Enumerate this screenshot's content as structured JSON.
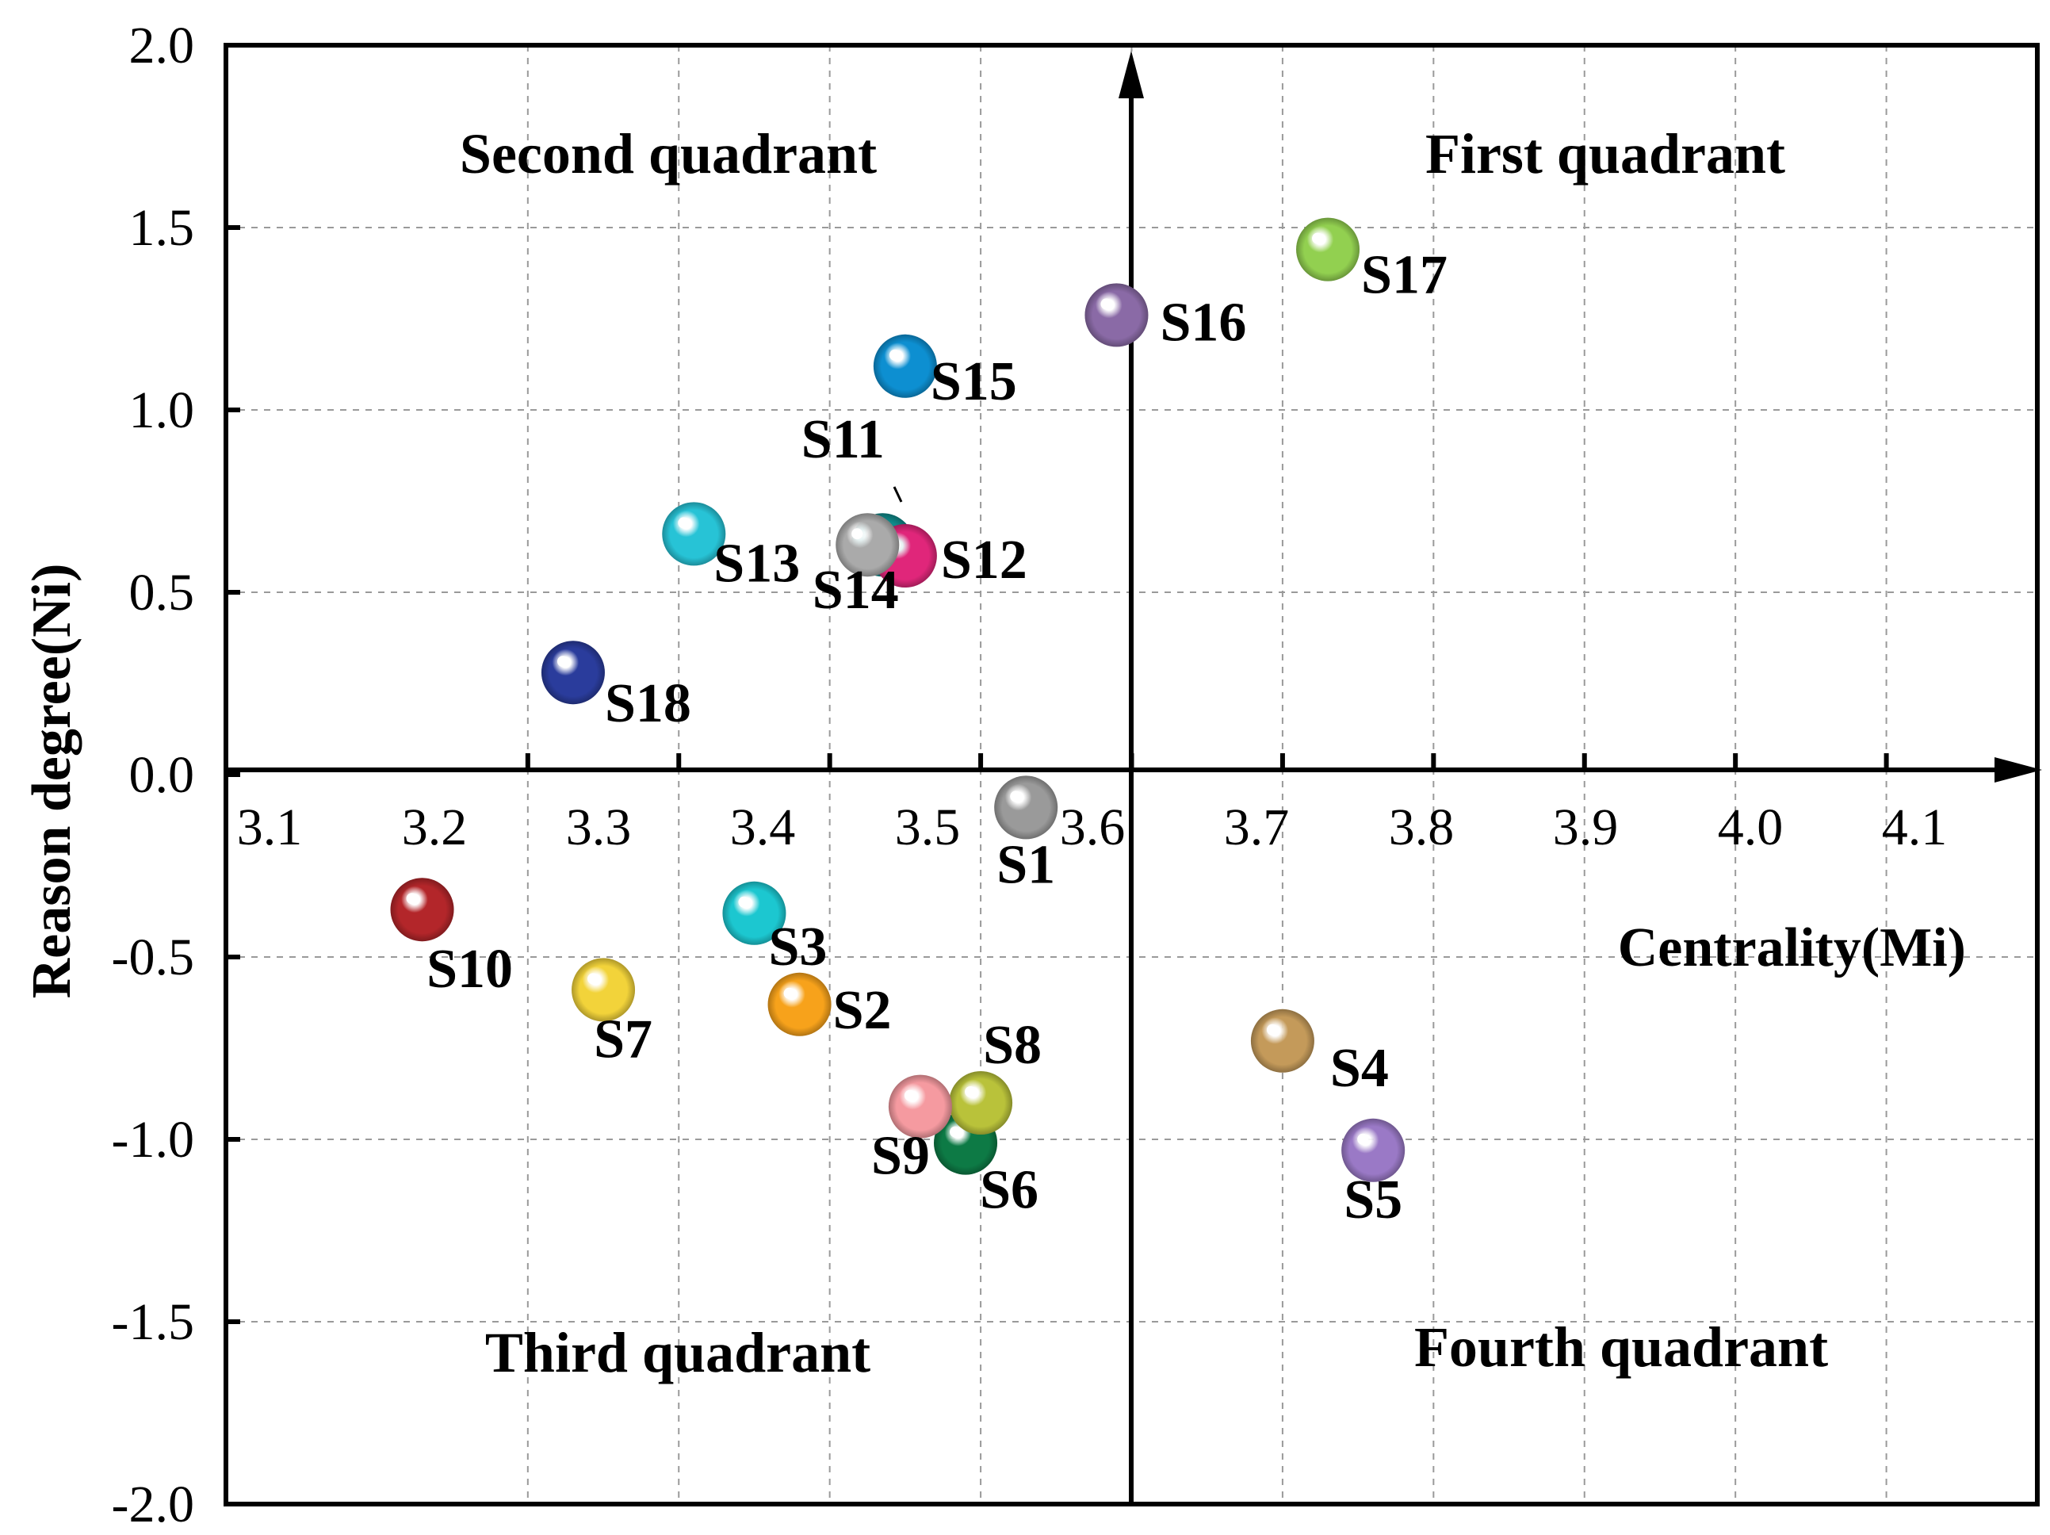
{
  "chart_data": {
    "type": "scatter",
    "xlabel": "Centrality(Mi)",
    "ylabel": "Reason degree(Ni)",
    "xlim": [
      2.95,
      4.15
    ],
    "ylim": [
      -2.0,
      2.0
    ],
    "x_ticks": [
      "3.1",
      "3.2",
      "3.3",
      "3.4",
      "3.5",
      "3.6",
      "3.7",
      "3.8",
      "3.9",
      "4.0",
      "4.1"
    ],
    "y_ticks": [
      "2.0",
      "1.5",
      "1.0",
      "0.5",
      "0.0",
      "-0.5",
      "-1.0",
      "-1.5",
      "-2.0"
    ],
    "origin": {
      "x": 3.5,
      "y": 0.0
    },
    "quadrants": {
      "first": "First quadrant",
      "second": "Second quadrant",
      "third": "Third quadrant",
      "fourth": "Fourth quadrant"
    },
    "grid": true,
    "points": [
      {
        "label": "S1",
        "x": 3.48,
        "y": -0.09,
        "color": "#9a9a9a"
      },
      {
        "label": "S2",
        "x": 3.33,
        "y": -0.63,
        "color": "#f7a21b"
      },
      {
        "label": "S3",
        "x": 3.3,
        "y": -0.38,
        "color": "#1cc7d0"
      },
      {
        "label": "S4",
        "x": 3.65,
        "y": -0.73,
        "color": "#c49a5a"
      },
      {
        "label": "S5",
        "x": 3.71,
        "y": -1.03,
        "color": "#9a79c6"
      },
      {
        "label": "S6",
        "x": 3.44,
        "y": -1.01,
        "color": "#0d7a45"
      },
      {
        "label": "S7",
        "x": 3.2,
        "y": -0.59,
        "color": "#f2d33a"
      },
      {
        "label": "S8",
        "x": 3.45,
        "y": -0.9,
        "color": "#b9c23a"
      },
      {
        "label": "S9",
        "x": 3.41,
        "y": -0.91,
        "color": "#f59aa0"
      },
      {
        "label": "S10",
        "x": 3.08,
        "y": -0.37,
        "color": "#b3262a"
      },
      {
        "label": "S11",
        "x": 3.385,
        "y": 0.63,
        "color": "#0f8a8a"
      },
      {
        "label": "S12",
        "x": 3.4,
        "y": 0.6,
        "color": "#e0267a"
      },
      {
        "label": "S13",
        "x": 3.26,
        "y": 0.66,
        "color": "#27c3d6"
      },
      {
        "label": "S14",
        "x": 3.375,
        "y": 0.63,
        "color": "#aaaaaa"
      },
      {
        "label": "S15",
        "x": 3.4,
        "y": 1.12,
        "color": "#0d8fd1"
      },
      {
        "label": "S16",
        "x": 3.54,
        "y": 1.26,
        "color": "#8a6aa6"
      },
      {
        "label": "S17",
        "x": 3.68,
        "y": 1.44,
        "color": "#92d050"
      },
      {
        "label": "S18",
        "x": 3.18,
        "y": 0.28,
        "color": "#2a3c9c"
      }
    ]
  }
}
